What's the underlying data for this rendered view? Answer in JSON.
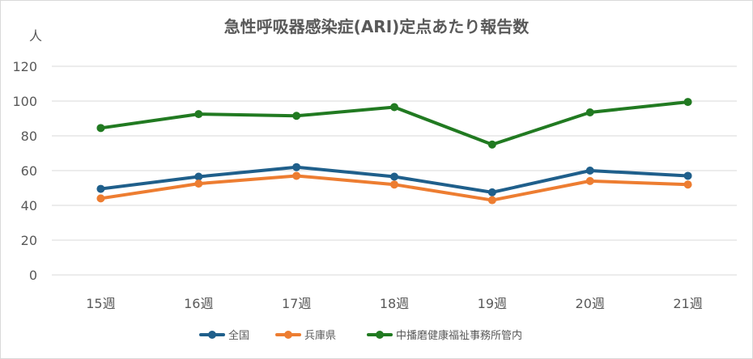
{
  "chart_data": {
    "type": "line",
    "title": "急性呼吸器感染症(ARI)定点あたり報告数",
    "ylabel": "人",
    "xlabel": "",
    "categories": [
      "15週",
      "16週",
      "17週",
      "18週",
      "19週",
      "20週",
      "21週"
    ],
    "ylim": [
      0,
      120
    ],
    "yticks": [
      0,
      20,
      40,
      60,
      80,
      100,
      120
    ],
    "grid": true,
    "legend_position": "bottom",
    "series": [
      {
        "name": "全国",
        "color": "#1f5f8b",
        "values": [
          49.5,
          56.5,
          62,
          56.5,
          47.5,
          60,
          57
        ]
      },
      {
        "name": "兵庫県",
        "color": "#ed7d31",
        "values": [
          44,
          52.5,
          57,
          52,
          43,
          54,
          52
        ]
      },
      {
        "name": "中播磨健康福祉事務所管内",
        "color": "#217a21",
        "values": [
          84.5,
          92.5,
          91.5,
          96.5,
          75,
          93.5,
          99.5
        ]
      }
    ]
  }
}
